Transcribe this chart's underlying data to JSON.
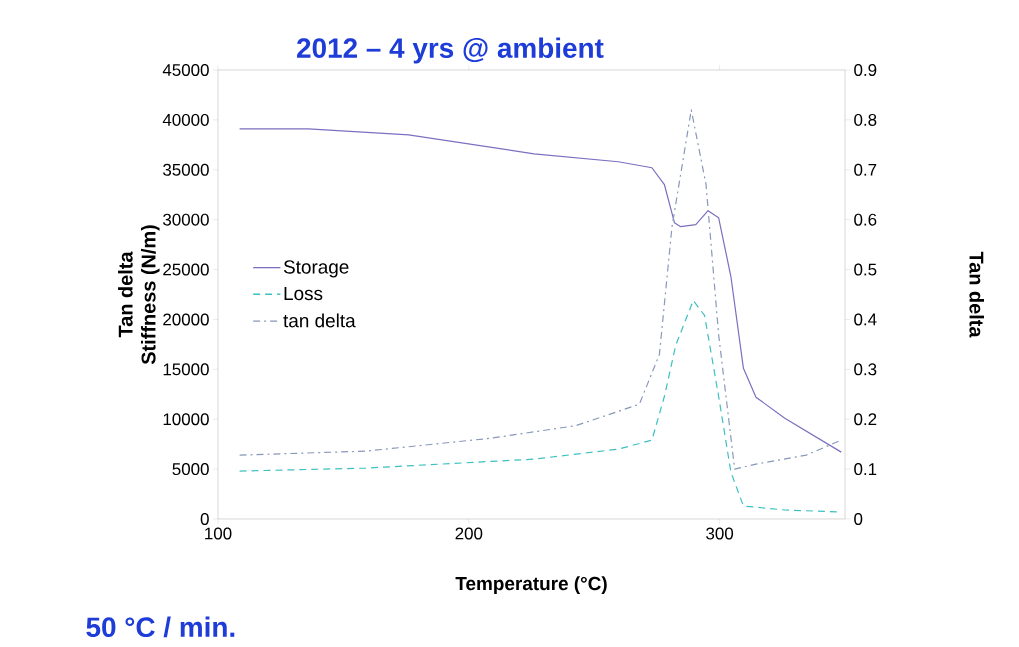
{
  "chart_data": {
    "type": "line",
    "title": "2012 – 4 yrs @ ambient",
    "xlabel": "Temperature (°C)",
    "ylabel": "Tan delta Stiffness (N/m)",
    "y2label": "Tan delta",
    "annotations": [
      "50 °C / min."
    ],
    "xlim": [
      100,
      350
    ],
    "xticks": [
      100,
      200,
      300
    ],
    "ylim": [
      0,
      45000
    ],
    "yticks": [
      0,
      5000,
      10000,
      15000,
      20000,
      25000,
      30000,
      35000,
      40000,
      45000
    ],
    "y2lim": [
      0,
      0.9
    ],
    "y2ticks": [
      0,
      0.1,
      0.2,
      0.3,
      0.4,
      0.5,
      0.6,
      0.7,
      0.8,
      0.9
    ],
    "legend": "left",
    "grid": false,
    "marker": "none",
    "series": [
      {
        "name": "Storage",
        "color": "#7a6fc0",
        "line_style": "solid",
        "x": [
          108.6,
          136,
          176,
          226,
          259.6,
          273,
          278,
          282,
          284.5,
          290.5,
          295.4,
          299.6,
          304.5,
          309.5,
          314.5,
          326,
          348.5
        ],
        "values": [
          39100,
          39100,
          38500,
          36600,
          35800,
          35200,
          33500,
          29700,
          29300,
          29500,
          30900,
          30200,
          24300,
          15100,
          12200,
          10100,
          6700
        ]
      },
      {
        "name": "Loss",
        "color": "#3cc0c0",
        "line_style": "dashed",
        "x": [
          108.6,
          159,
          226,
          259.6,
          273,
          278,
          282.5,
          289.5,
          294,
          299.6,
          304.5,
          309.5,
          326,
          348
        ],
        "values": [
          4800,
          5100,
          6000,
          7000,
          7900,
          12300,
          17400,
          21900,
          20400,
          12300,
          4700,
          1300,
          900,
          700
        ]
      },
      {
        "name": "tan delta",
        "color": "#8898b8",
        "line_style": "dashdot",
        "axis": "y2",
        "x": [
          108.6,
          159,
          209,
          242.6,
          268,
          276,
          281,
          288.7,
          294.6,
          299.6,
          306,
          314.5,
          334.5,
          348.5
        ],
        "values": [
          0.128,
          0.136,
          0.162,
          0.187,
          0.23,
          0.33,
          0.585,
          0.82,
          0.67,
          0.37,
          0.1,
          0.11,
          0.128,
          0.158
        ]
      }
    ]
  }
}
